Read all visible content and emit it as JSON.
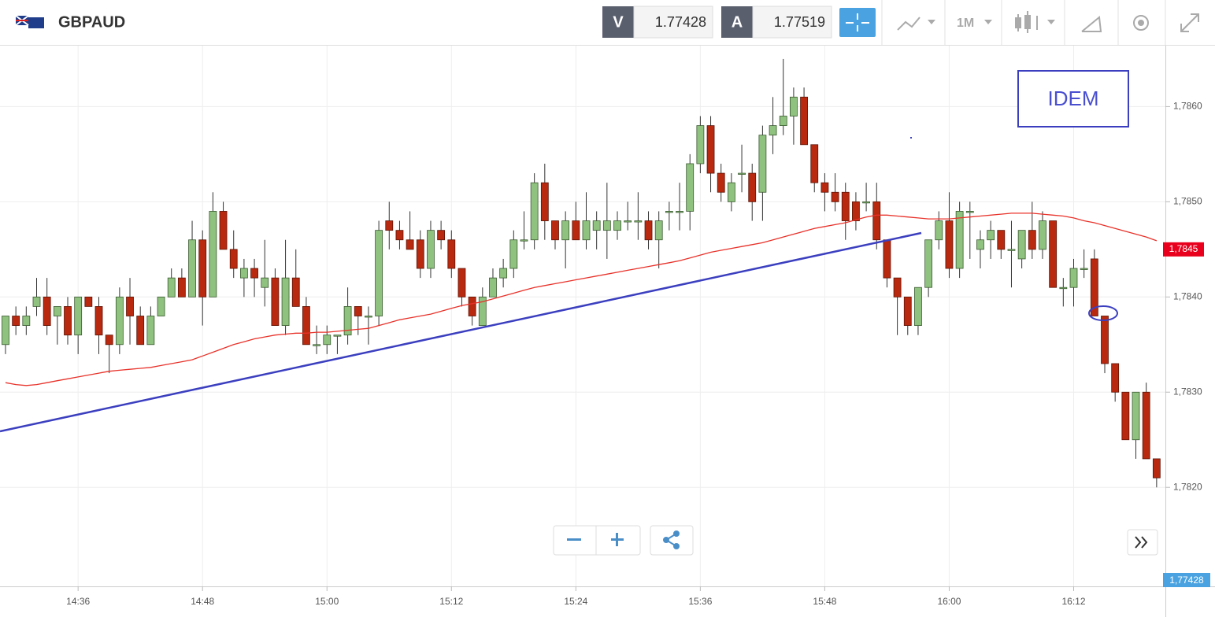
{
  "header": {
    "symbol": "GBPAUD",
    "bid_label": "V",
    "bid": "1.77428",
    "ask_label": "A",
    "ask": "1.77519",
    "timeframe": "1M"
  },
  "annotation": "IDEM",
  "last_price_tag": {
    "value": 1.7845,
    "label": "1,7845"
  },
  "bottom_price_tag": "1,77428",
  "chart_data": {
    "type": "candlestick",
    "categories": [
      null,
      null,
      null,
      null,
      null,
      null,
      null,
      "14:36",
      null,
      null,
      null,
      null,
      null,
      null,
      null,
      null,
      null,
      null,
      null,
      "14:48",
      null,
      null,
      null,
      null,
      null,
      null,
      null,
      null,
      null,
      null,
      null,
      "15:00",
      null,
      null,
      null,
      null,
      null,
      null,
      null,
      null,
      null,
      null,
      null,
      "15:12",
      null,
      null,
      null,
      null,
      null,
      null,
      null,
      null,
      null,
      null,
      null,
      "15:24",
      null,
      null,
      null,
      null,
      null,
      null,
      null,
      null,
      null,
      null,
      null,
      "15:36",
      null,
      null,
      null,
      null,
      null,
      null,
      null,
      null,
      null,
      null,
      null,
      "15:48",
      null,
      null,
      null,
      null,
      null,
      null,
      null,
      null,
      null,
      null,
      null,
      "16:00",
      null,
      null,
      null,
      null,
      null,
      null,
      null,
      null,
      null,
      null,
      null,
      "16:12",
      null,
      null,
      null,
      null,
      null,
      null,
      null,
      null
    ],
    "open": [
      1.7835,
      1.7838,
      1.7837,
      1.7839,
      1.784,
      1.7838,
      1.7839,
      1.7836,
      1.784,
      1.7839,
      1.7836,
      1.7835,
      1.784,
      1.7838,
      1.7835,
      1.7838,
      1.784,
      1.7842,
      1.784,
      1.7846,
      1.784,
      1.7849,
      1.7845,
      1.7842,
      1.7843,
      1.7841,
      1.7842,
      1.7837,
      1.7842,
      1.7839,
      1.7835,
      1.7835,
      1.7836,
      1.7836,
      1.7839,
      1.7838,
      1.7838,
      1.7848,
      1.7847,
      1.7846,
      1.7846,
      1.7843,
      1.7847,
      1.7846,
      1.7843,
      1.784,
      1.7837,
      1.784,
      1.7842,
      1.7843,
      1.7846,
      1.7846,
      1.7852,
      1.7848,
      1.7846,
      1.7848,
      1.7846,
      1.7847,
      1.7847,
      1.7847,
      1.7848,
      1.7848,
      1.7848,
      1.7846,
      1.7849,
      1.7849,
      1.7849,
      1.7854,
      1.7858,
      1.7853,
      1.785,
      1.7853,
      1.7853,
      1.7851,
      1.7857,
      1.7858,
      1.7859,
      1.7861,
      1.7856,
      1.7852,
      1.7851,
      1.7851,
      1.785,
      1.785,
      1.785,
      1.7846,
      1.7842,
      1.784,
      1.7837,
      1.7841,
      1.7846,
      1.7848,
      1.7843,
      1.7849,
      1.7845,
      1.7846,
      1.7847,
      1.7845,
      1.7844,
      1.7847,
      1.7845,
      1.7848,
      1.7841,
      1.7841,
      1.7843,
      1.7844,
      1.7838,
      1.7833,
      1.783,
      1.7825,
      1.783,
      1.7823
    ],
    "high": [
      1.7838,
      1.7839,
      1.7839,
      1.7842,
      1.7842,
      1.7839,
      1.784,
      1.784,
      1.784,
      1.784,
      1.7836,
      1.7841,
      1.7842,
      1.7839,
      1.7839,
      1.784,
      1.7843,
      1.7843,
      1.7848,
      1.7847,
      1.7851,
      1.785,
      1.7847,
      1.7844,
      1.7844,
      1.7846,
      1.7843,
      1.7846,
      1.7845,
      1.784,
      1.7837,
      1.7837,
      1.7836,
      1.7841,
      1.7839,
      1.7839,
      1.7848,
      1.785,
      1.7848,
      1.7849,
      1.7847,
      1.7848,
      1.7848,
      1.7847,
      1.7843,
      1.784,
      1.7841,
      1.7843,
      1.7844,
      1.7847,
      1.7849,
      1.7853,
      1.7854,
      1.7848,
      1.7849,
      1.785,
      1.7851,
      1.7849,
      1.7852,
      1.7849,
      1.785,
      1.7851,
      1.7849,
      1.7849,
      1.785,
      1.7852,
      1.7855,
      1.7859,
      1.7859,
      1.7854,
      1.7853,
      1.7856,
      1.7854,
      1.7858,
      1.7861,
      1.7865,
      1.7862,
      1.7862,
      1.7856,
      1.7853,
      1.7853,
      1.7852,
      1.7851,
      1.7852,
      1.7852,
      1.7846,
      1.7842,
      1.784,
      1.7841,
      1.7846,
      1.7849,
      1.7851,
      1.785,
      1.785,
      1.7847,
      1.7848,
      1.7847,
      1.7848,
      1.7847,
      1.785,
      1.7849,
      1.7848,
      1.7842,
      1.7844,
      1.7845,
      1.7845,
      1.7838,
      1.7833,
      1.783,
      1.783,
      1.7831,
      1.7823
    ],
    "low": [
      1.7834,
      1.7836,
      1.7836,
      1.7838,
      1.7836,
      1.7835,
      1.7835,
      1.7834,
      1.7839,
      1.7834,
      1.7832,
      1.7834,
      1.7835,
      1.7835,
      1.7835,
      1.7838,
      1.784,
      1.784,
      1.784,
      1.7837,
      1.784,
      1.7845,
      1.7842,
      1.784,
      1.784,
      1.7839,
      1.7837,
      1.7836,
      1.7839,
      1.7835,
      1.7834,
      1.7834,
      1.7834,
      1.7835,
      1.7836,
      1.7835,
      1.7837,
      1.7845,
      1.7845,
      1.7845,
      1.7842,
      1.7842,
      1.7845,
      1.7842,
      1.7839,
      1.7837,
      1.7837,
      1.784,
      1.7841,
      1.7842,
      1.7845,
      1.7845,
      1.7846,
      1.7845,
      1.7843,
      1.7846,
      1.7845,
      1.7845,
      1.7844,
      1.7846,
      1.7847,
      1.7846,
      1.7845,
      1.7843,
      1.7847,
      1.7847,
      1.7847,
      1.7853,
      1.7851,
      1.785,
      1.7849,
      1.7851,
      1.7848,
      1.7848,
      1.7855,
      1.7857,
      1.7856,
      1.7856,
      1.7851,
      1.7849,
      1.7849,
      1.7846,
      1.7847,
      1.7849,
      1.7845,
      1.7841,
      1.7836,
      1.7836,
      1.7836,
      1.784,
      1.7845,
      1.7842,
      1.7842,
      1.7844,
      1.7843,
      1.7844,
      1.7844,
      1.7841,
      1.7843,
      1.7844,
      1.7844,
      1.7841,
      1.7839,
      1.7839,
      1.7842,
      1.7838,
      1.7832,
      1.7829,
      1.7825,
      1.7823,
      1.7823,
      1.782
    ],
    "close": [
      1.7838,
      1.7837,
      1.7838,
      1.784,
      1.7837,
      1.7839,
      1.7836,
      1.784,
      1.7839,
      1.7836,
      1.7835,
      1.784,
      1.7838,
      1.7835,
      1.7838,
      1.784,
      1.7842,
      1.784,
      1.7846,
      1.784,
      1.7849,
      1.7845,
      1.7843,
      1.7843,
      1.7842,
      1.7842,
      1.7837,
      1.7842,
      1.7839,
      1.7835,
      1.7835,
      1.7836,
      1.7836,
      1.7839,
      1.7838,
      1.7838,
      1.7847,
      1.7847,
      1.7846,
      1.7845,
      1.7843,
      1.7847,
      1.7846,
      1.7843,
      1.784,
      1.7838,
      1.784,
      1.7842,
      1.7843,
      1.7846,
      1.7846,
      1.7852,
      1.7848,
      1.7846,
      1.7848,
      1.7846,
      1.7848,
      1.7848,
      1.7848,
      1.7848,
      1.7848,
      1.7848,
      1.7846,
      1.7848,
      1.7849,
      1.7849,
      1.7854,
      1.7858,
      1.7853,
      1.7851,
      1.7852,
      1.7853,
      1.785,
      1.7857,
      1.7858,
      1.7859,
      1.7861,
      1.7856,
      1.7852,
      1.7851,
      1.785,
      1.7848,
      1.7848,
      1.785,
      1.7846,
      1.7842,
      1.784,
      1.7837,
      1.7841,
      1.7846,
      1.7848,
      1.7843,
      1.7849,
      1.7849,
      1.7846,
      1.7847,
      1.7845,
      1.7845,
      1.7847,
      1.7845,
      1.7848,
      1.7841,
      1.7841,
      1.7843,
      1.7843,
      1.7838,
      1.7833,
      1.783,
      1.7825,
      1.783,
      1.7823,
      1.7821
    ],
    "up_color": "#8fc17f",
    "down_color": "#b8290f",
    "moving_average": {
      "color": "#e8322a",
      "values": [
        1.7831,
        1.78308,
        1.78307,
        1.78308,
        1.7831,
        1.78312,
        1.78314,
        1.78316,
        1.78318,
        1.7832,
        1.78322,
        1.78323,
        1.78324,
        1.78325,
        1.78326,
        1.78328,
        1.7833,
        1.78332,
        1.78334,
        1.78338,
        1.78342,
        1.78346,
        1.7835,
        1.78353,
        1.78356,
        1.78358,
        1.7836,
        1.78361,
        1.78362,
        1.78362,
        1.78363,
        1.78363,
        1.78364,
        1.78365,
        1.78366,
        1.78367,
        1.7837,
        1.78373,
        1.78376,
        1.78378,
        1.7838,
        1.78382,
        1.78385,
        1.78388,
        1.78391,
        1.78393,
        1.78395,
        1.78398,
        1.78401,
        1.78404,
        1.78407,
        1.7841,
        1.78412,
        1.78414,
        1.78416,
        1.78418,
        1.7842,
        1.78422,
        1.78424,
        1.78426,
        1.78428,
        1.7843,
        1.78432,
        1.78434,
        1.78436,
        1.78438,
        1.78441,
        1.78444,
        1.78447,
        1.78449,
        1.78451,
        1.78453,
        1.78455,
        1.78457,
        1.7846,
        1.78463,
        1.78466,
        1.78469,
        1.78472,
        1.78474,
        1.78476,
        1.78478,
        1.78481,
        1.78484,
        1.78486,
        1.78486,
        1.78485,
        1.78484,
        1.78483,
        1.78482,
        1.78482,
        1.78482,
        1.78483,
        1.78484,
        1.78485,
        1.78486,
        1.78487,
        1.78488,
        1.78488,
        1.78488,
        1.78487,
        1.78486,
        1.78485,
        1.78483,
        1.7848,
        1.78478,
        1.78475,
        1.78472,
        1.78469,
        1.78466,
        1.78463,
        1.78459
      ]
    },
    "ylim": [
      1.78096,
      1.78664
    ],
    "yticks": [
      {
        "value": 1.782,
        "label": "1,7820"
      },
      {
        "value": 1.783,
        "label": "1,7830"
      },
      {
        "value": 1.784,
        "label": "1,7840"
      },
      {
        "value": 1.785,
        "label": "1,7850"
      },
      {
        "value": 1.786,
        "label": "1,7860"
      }
    ],
    "grid": true
  }
}
